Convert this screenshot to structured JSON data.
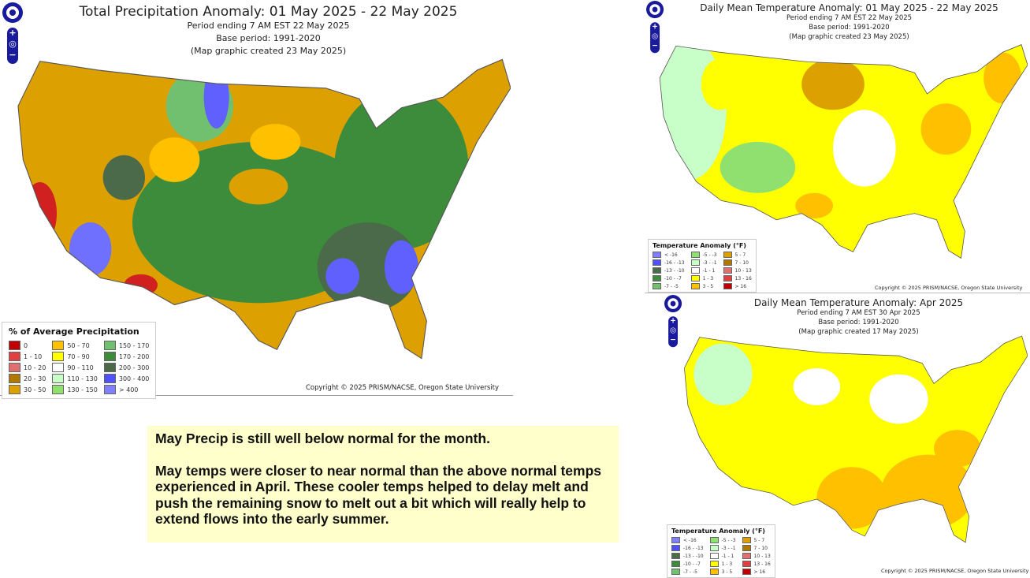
{
  "precip_map": {
    "title": "Total Precipitation Anomaly: 01 May 2025 - 22 May 2025",
    "subtitles": [
      "Period ending 7 AM EST 22 May 2025",
      "Base period: 1991-2020",
      "(Map graphic created 23 May 2025)"
    ],
    "legend_title": "% of Average Precipitation",
    "legend": [
      {
        "label": "0",
        "color": "#c00000"
      },
      {
        "label": "1 - 10",
        "color": "#e04040"
      },
      {
        "label": "10 - 20",
        "color": "#e07070"
      },
      {
        "label": "20 - 30",
        "color": "#b07800"
      },
      {
        "label": "30 - 50",
        "color": "#dca000"
      },
      {
        "label": "50 - 70",
        "color": "#ffc000"
      },
      {
        "label": "70 - 90",
        "color": "#ffff00"
      },
      {
        "label": "90 - 110",
        "color": "#ffffff"
      },
      {
        "label": "110 - 130",
        "color": "#c8ffc8"
      },
      {
        "label": "130 - 150",
        "color": "#90e070"
      },
      {
        "label": "150 - 170",
        "color": "#70c070"
      },
      {
        "label": "170 - 200",
        "color": "#3c8c3c"
      },
      {
        "label": "200 - 300",
        "color": "#4a6a4a"
      },
      {
        "label": "300 - 400",
        "color": "#5050ff"
      },
      {
        "label": "> 400",
        "color": "#8080ff"
      }
    ],
    "copyright": "Copyright © 2025 PRISM/NACSE, Oregon State University"
  },
  "temp_may_map": {
    "title": "Daily Mean Temperature Anomaly: 01 May 2025 - 22 May 2025",
    "subtitles": [
      "Period ending 7 AM EST 22 May 2025",
      "Base period: 1991-2020",
      "(Map graphic created 23 May 2025)"
    ],
    "copyright": "Copyright © 2025 PRISM/NACSE, Oregon State University"
  },
  "temp_apr_map": {
    "title": "Daily Mean Temperature Anomaly: Apr 2025",
    "subtitles": [
      "Period ending 7 AM EST 30 Apr 2025",
      "Base period: 1991-2020",
      "(Map graphic created 17 May 2025)"
    ],
    "copyright": "Copyright © 2025 PRISM/NACSE, Oregon State University"
  },
  "temp_legend_title": "Temperature Anomaly (°F)",
  "temp_legend": [
    {
      "label": "< -16",
      "color": "#8080ff"
    },
    {
      "label": "-16 - -13",
      "color": "#5050ff"
    },
    {
      "label": "-13 - -10",
      "color": "#4a6a4a"
    },
    {
      "label": "-10 - -7",
      "color": "#3c8c3c"
    },
    {
      "label": "-7 - -5",
      "color": "#70c070"
    },
    {
      "label": "-5 - -3",
      "color": "#90e070"
    },
    {
      "label": "-3 - -1",
      "color": "#c8ffc8"
    },
    {
      "label": "-1 - 1",
      "color": "#ffffff"
    },
    {
      "label": "1 - 3",
      "color": "#ffff00"
    },
    {
      "label": "3 - 5",
      "color": "#ffc000"
    },
    {
      "label": "5 - 7",
      "color": "#dca000"
    },
    {
      "label": "7 - 10",
      "color": "#b07800"
    },
    {
      "label": "10 - 13",
      "color": "#e07070"
    },
    {
      "label": "13 - 16",
      "color": "#e04040"
    },
    {
      "label": "> 16",
      "color": "#c00000"
    }
  ],
  "notes": {
    "line1": "May Precip is still well below normal for the month.",
    "line2": "May temps were closer to near normal than the above normal temps experienced in April. These cooler temps helped to delay melt and push the remaining snow to melt out a bit which will really help to extend flows into the early summer."
  }
}
